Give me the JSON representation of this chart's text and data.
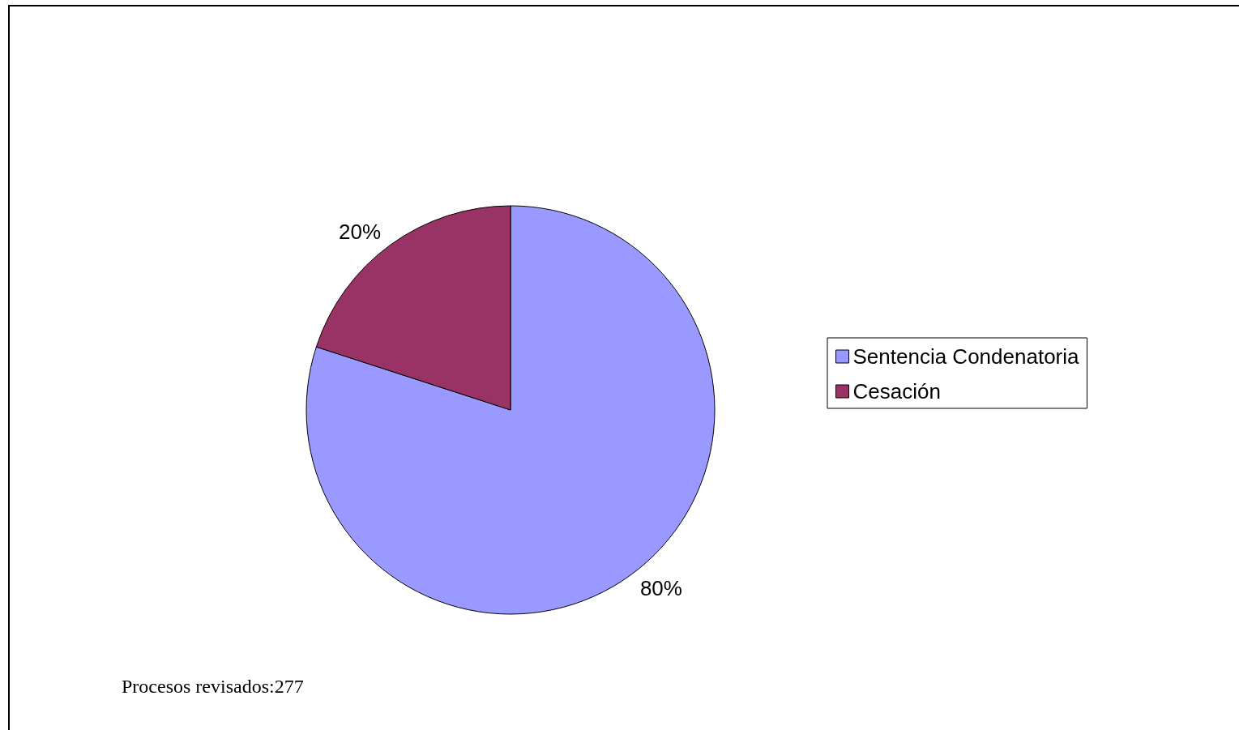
{
  "chart_data": {
    "type": "pie",
    "categories": [
      "Sentencia Condenatoria",
      "Cesación"
    ],
    "values": [
      80,
      20
    ],
    "colors": [
      "#9999ff",
      "#993366"
    ],
    "value_labels": [
      "80%",
      "20%"
    ],
    "legend": "right",
    "annotations": [
      "Procesos revisados:277"
    ]
  }
}
